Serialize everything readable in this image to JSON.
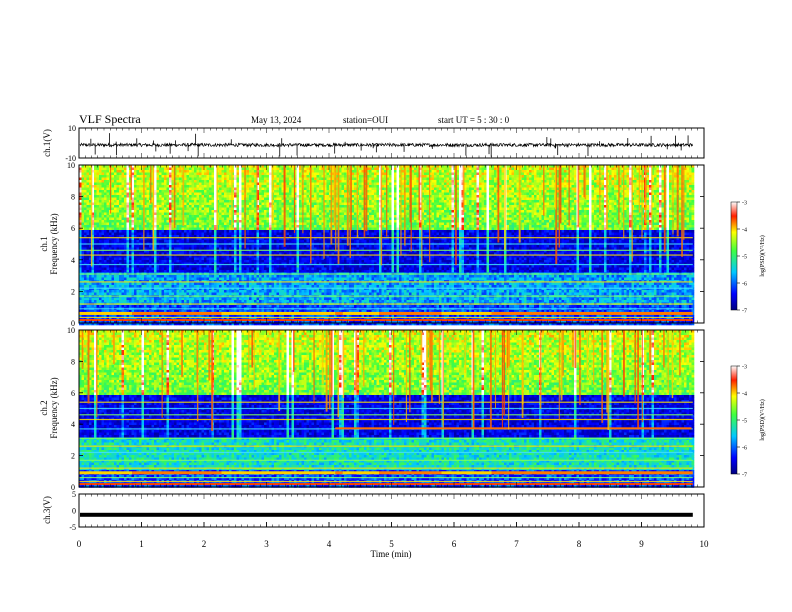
{
  "header": {
    "title": "VLF Spectra",
    "date": "May 13, 2024",
    "station": "station=OUI",
    "start": "start UT = 5 : 30 : 0"
  },
  "chart_data": [
    {
      "name": "ch1-waveform",
      "type": "line",
      "ylabel": "ch.1(V)",
      "ylim": [
        -10,
        10
      ],
      "y_ticks": [
        "10",
        "-10"
      ],
      "xlim": [
        0,
        10
      ],
      "description_level": -1.3,
      "grid": false
    },
    {
      "name": "ch1-spectrogram",
      "type": "heatmap",
      "ylabel_channel": "ch.1",
      "ylabel": "Frequency (kHz)",
      "ylim": [
        0,
        10
      ],
      "y_ticks": [
        "0",
        "2",
        "4",
        "6",
        "8",
        "10"
      ],
      "xlim": [
        0,
        10
      ],
      "colorbar": {
        "label": "log(PSD)(V²/Hz)",
        "ticks": [
          "-3",
          "-4",
          "-5",
          "-6",
          "-7"
        ],
        "range": [
          -7,
          -3
        ]
      }
    },
    {
      "name": "ch2-spectrogram",
      "type": "heatmap",
      "ylabel_channel": "ch.2",
      "ylabel": "Frequency (kHz)",
      "ylim": [
        0,
        10
      ],
      "y_ticks": [
        "0",
        "2",
        "4",
        "6",
        "8",
        "10"
      ],
      "xlim": [
        0,
        10
      ],
      "colorbar": {
        "label": "log(PSD)(V²/Hz)",
        "ticks": [
          "-3",
          "-4",
          "-5",
          "-6",
          "-7"
        ],
        "range": [
          -7,
          -3
        ]
      }
    },
    {
      "name": "ch3-waveform",
      "type": "line",
      "ylabel": "ch.3(V)",
      "ylim": [
        -5,
        5
      ],
      "y_ticks": [
        "5",
        "0",
        "-5"
      ],
      "xlim": [
        0,
        10
      ],
      "level": -1.3,
      "xlabel": "Time (min)",
      "x_ticks": [
        "0",
        "1",
        "2",
        "3",
        "4",
        "5",
        "6",
        "7",
        "8",
        "9",
        "10"
      ],
      "data_end_min": 9.82
    }
  ]
}
